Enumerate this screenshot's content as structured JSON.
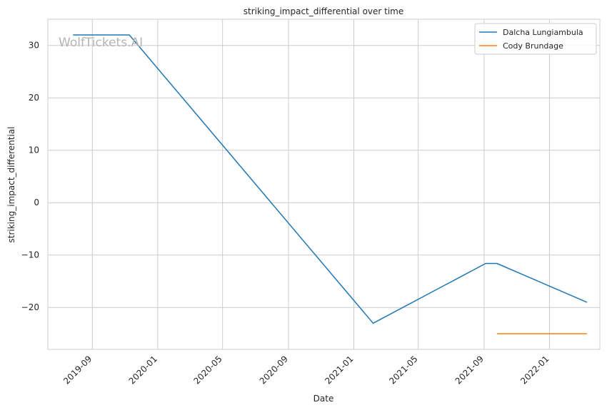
{
  "watermark": "WolfTickets.AI",
  "chart_data": {
    "type": "line",
    "title": "striking_impact_differential over time",
    "xlabel": "Date",
    "ylabel": "striking_impact_differential",
    "x_ticks": [
      "2019-09",
      "2020-01",
      "2020-05",
      "2020-09",
      "2021-01",
      "2021-05",
      "2021-09",
      "2022-01"
    ],
    "y_ticks": [
      -20,
      -10,
      0,
      10,
      20,
      30
    ],
    "xlim": [
      "2019-06-10",
      "2022-04-05"
    ],
    "ylim": [
      -28,
      35
    ],
    "grid": true,
    "legend": "top-right",
    "series": [
      {
        "name": "Dalcha Lungiambula",
        "color": "#1f77b4",
        "x": [
          "2019-07-27",
          "2019-11-09",
          "2021-02-06",
          "2021-09-04",
          "2021-09-25",
          "2022-03-12"
        ],
        "y": [
          32,
          32,
          -23,
          -11.6,
          -11.6,
          -19
        ]
      },
      {
        "name": "Cody Brundage",
        "color": "#ff7f0e",
        "x": [
          "2021-09-25",
          "2022-03-12"
        ],
        "y": [
          -25,
          -25
        ]
      }
    ]
  }
}
